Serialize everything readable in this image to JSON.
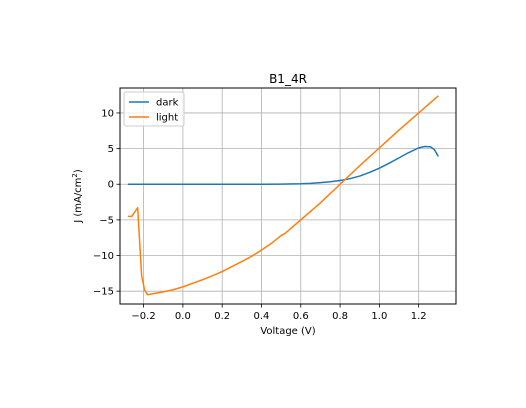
{
  "chart_data": {
    "type": "line",
    "title": "B1_4R",
    "xlabel": "Voltage (V)",
    "ylabel": {
      "prefix": "J (mA/cm",
      "sup": "2",
      "suffix": ")"
    },
    "xlim": [
      -0.32,
      1.39
    ],
    "ylim": [
      -16.8,
      13.5
    ],
    "xticks": [
      {
        "value": -0.2,
        "label": "−0.2"
      },
      {
        "value": 0.0,
        "label": "0.0"
      },
      {
        "value": 0.2,
        "label": "0.2"
      },
      {
        "value": 0.4,
        "label": "0.4"
      },
      {
        "value": 0.6,
        "label": "0.6"
      },
      {
        "value": 0.8,
        "label": "0.8"
      },
      {
        "value": 1.0,
        "label": "1.0"
      },
      {
        "value": 1.2,
        "label": "1.2"
      }
    ],
    "yticks": [
      {
        "value": 10,
        "label": "10"
      },
      {
        "value": 5,
        "label": "5"
      },
      {
        "value": 0,
        "label": "0"
      },
      {
        "value": -5,
        "label": "−5"
      },
      {
        "value": -10,
        "label": "−10"
      },
      {
        "value": -15,
        "label": "−15"
      }
    ],
    "grid": true,
    "legend_position": "top-left",
    "series": [
      {
        "name": "dark",
        "color": "#1f77b4",
        "x": [
          -0.28,
          -0.2,
          0.0,
          0.2,
          0.4,
          0.5,
          0.6,
          0.65,
          0.7,
          0.75,
          0.8,
          0.85,
          0.9,
          0.95,
          1.0,
          1.05,
          1.1,
          1.15,
          1.2,
          1.23,
          1.26,
          1.28,
          1.3
        ],
        "y": [
          0.0,
          0.0,
          0.0,
          0.0,
          0.0,
          0.02,
          0.06,
          0.12,
          0.22,
          0.35,
          0.52,
          0.78,
          1.15,
          1.65,
          2.25,
          2.95,
          3.7,
          4.45,
          5.1,
          5.3,
          5.25,
          4.85,
          3.9
        ]
      },
      {
        "name": "light",
        "color": "#ff7f0e",
        "x": [
          -0.28,
          -0.26,
          -0.23,
          -0.21,
          -0.195,
          -0.18,
          -0.15,
          -0.1,
          -0.05,
          0.0,
          0.05,
          0.1,
          0.15,
          0.2,
          0.25,
          0.3,
          0.35,
          0.4,
          0.45,
          0.5,
          0.52,
          0.6,
          0.7,
          0.8,
          0.9,
          1.0,
          1.1,
          1.2,
          1.3
        ],
        "y": [
          -4.5,
          -4.5,
          -3.3,
          -12.8,
          -14.8,
          -15.5,
          -15.35,
          -15.1,
          -14.8,
          -14.4,
          -13.9,
          -13.4,
          -12.85,
          -12.25,
          -11.55,
          -10.85,
          -10.1,
          -9.25,
          -8.3,
          -7.2,
          -6.9,
          -5.0,
          -2.6,
          0.0,
          2.6,
          5.1,
          7.6,
          10.0,
          12.4
        ]
      }
    ]
  }
}
